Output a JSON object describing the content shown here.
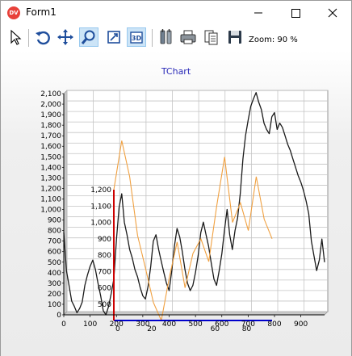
{
  "window": {
    "title": "Form1",
    "app_icon_text": "DV",
    "controls": [
      "minimize-icon",
      "maximize-icon",
      "close-icon"
    ]
  },
  "toolbar": {
    "buttons": [
      {
        "icon": "pointer-icon",
        "active": false
      },
      {
        "icon": "rotate-icon",
        "active": false
      },
      {
        "icon": "move-icon",
        "active": false
      },
      {
        "icon": "zoom-icon",
        "active": true
      },
      {
        "icon": "depth-icon",
        "active": false
      },
      {
        "icon": "3d-icon",
        "active": true
      },
      {
        "icon": "edit-icon",
        "active": false
      },
      {
        "icon": "print-icon",
        "active": false
      },
      {
        "icon": "copy-icon",
        "active": false
      },
      {
        "icon": "save-icon",
        "active": false
      }
    ],
    "zoom_text": "Zoom: 90 %"
  },
  "chart_data": [
    {
      "type": "line",
      "title": "TChart",
      "xlim": [
        0,
        990
      ],
      "ylim": [
        0,
        2100
      ],
      "x_ticks": [
        "0",
        "100",
        "200",
        "300",
        "400",
        "500",
        "600",
        "700",
        "800",
        "900"
      ],
      "y_ticks": [
        "0",
        "100",
        "200",
        "300",
        "400",
        "500",
        "600",
        "700",
        "800",
        "900",
        "1,000",
        "1,100",
        "1,200",
        "1,300",
        "1,400",
        "1,500",
        "1,600",
        "1,700",
        "1,800",
        "1,900",
        "2,000",
        "2,100"
      ],
      "grid": true,
      "series": [
        {
          "color": "#1a1a1a",
          "x": [
            0,
            10,
            20,
            30,
            40,
            50,
            60,
            70,
            80,
            90,
            100,
            110,
            120,
            130,
            140,
            150,
            160,
            170,
            180,
            190,
            200,
            210,
            220,
            230,
            240,
            250,
            260,
            270,
            280,
            290,
            300,
            310,
            320,
            330,
            340,
            350,
            360,
            370,
            380,
            390,
            400,
            410,
            420,
            430,
            440,
            450,
            460,
            470,
            480,
            490,
            500,
            510,
            520,
            530,
            540,
            550,
            560,
            570,
            580,
            590,
            600,
            610,
            620,
            630,
            640,
            650,
            660,
            670,
            680,
            690,
            700,
            710,
            720,
            730,
            740,
            750,
            760,
            770,
            780,
            790,
            800,
            810,
            820,
            830,
            840,
            850,
            860,
            870,
            880,
            890,
            900,
            910,
            920,
            930,
            940,
            950,
            960,
            970,
            980,
            990
          ],
          "y": [
            780,
            420,
            280,
            130,
            80,
            20,
            60,
            120,
            280,
            380,
            460,
            520,
            430,
            300,
            180,
            40,
            0,
            80,
            200,
            340,
            720,
            1020,
            1150,
            880,
            760,
            620,
            540,
            430,
            360,
            260,
            180,
            150,
            270,
            460,
            700,
            760,
            620,
            510,
            400,
            300,
            230,
            420,
            650,
            820,
            740,
            600,
            430,
            300,
            230,
            280,
            400,
            560,
            780,
            880,
            760,
            650,
            490,
            340,
            280,
            420,
            580,
            800,
            1000,
            760,
            620,
            800,
            920,
            1150,
            1480,
            1700,
            1850,
            1980,
            2050,
            2110,
            2020,
            1950,
            1820,
            1760,
            1720,
            1880,
            1920,
            1760,
            1820,
            1780,
            1700,
            1620,
            1560,
            1480,
            1400,
            1320,
            1260,
            1180,
            1080,
            960,
            700,
            560,
            420,
            520,
            720,
            500
          ]
        },
        {
          "color": "#f0a040",
          "x": [
            0,
            5,
            10,
            15,
            20,
            25,
            30,
            35,
            40,
            45,
            50,
            55,
            60,
            65,
            70,
            75,
            80,
            85,
            90,
            95,
            100
          ],
          "y": [
            1200,
            1500,
            1280,
            920,
            720,
            510,
            400,
            660,
            880,
            600,
            810,
            900,
            760,
            1100,
            1400,
            1000,
            1120,
            950,
            1280,
            1020,
            900
          ]
        }
      ],
      "inner_axis": {
        "x_ticks": [
          "0",
          "20",
          "60",
          "80"
        ],
        "y_ticks": [
          "500",
          "600",
          "700",
          "800",
          "900",
          "1,000",
          "1,100",
          "1,200"
        ],
        "x_axis_color": "#0000cc",
        "y_axis_color": "#cc0000"
      }
    }
  ]
}
